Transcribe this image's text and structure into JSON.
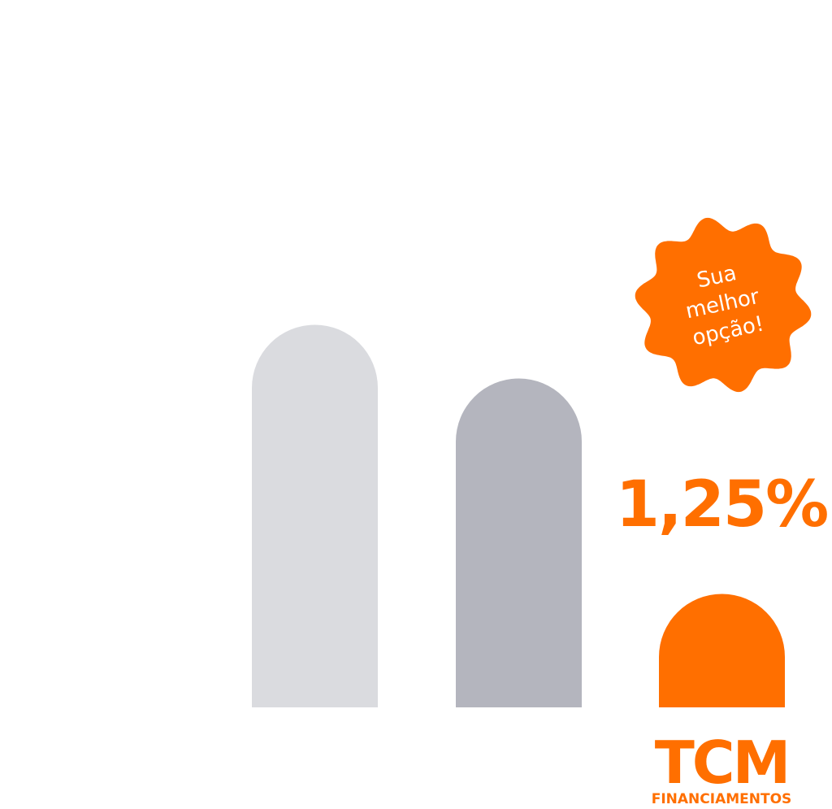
{
  "badge": {
    "lines": [
      "Sua",
      "melhor",
      "opção!"
    ]
  },
  "rate": "1,25%",
  "brand": {
    "name": "TCM",
    "subtitle": "FINANCIAMENTOS"
  }
}
